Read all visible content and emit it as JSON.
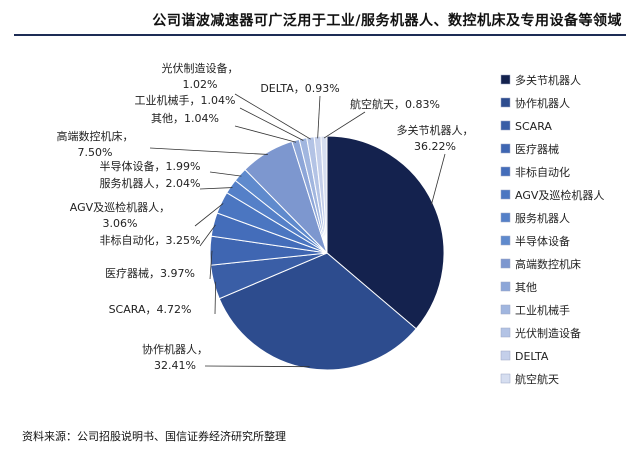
{
  "title": "公司谐波减速器可广泛用于工业/服务机器人、数控机床及专用设备等领域",
  "source": "资料来源：公司招股说明书、国信证券经济研究所整理",
  "chart_data": {
    "type": "pie",
    "legend_position": "right",
    "slices": [
      {
        "label": "多关节机器人",
        "value": 36.22,
        "display": "36.22%",
        "color": "#14224e"
      },
      {
        "label": "协作机器人",
        "value": 32.41,
        "display": "32.41%",
        "color": "#2d4c8e"
      },
      {
        "label": "SCARA",
        "value": 4.72,
        "display": "4.72%",
        "color": "#3a5ea6"
      },
      {
        "label": "医疗器械",
        "value": 3.97,
        "display": "3.97%",
        "color": "#3f66b2"
      },
      {
        "label": "非标自动化",
        "value": 3.25,
        "display": "3.25%",
        "color": "#446dba"
      },
      {
        "label": "AGV及巡检机器人",
        "value": 3.06,
        "display": "3.06%",
        "color": "#4b76c1"
      },
      {
        "label": "服务机器人",
        "value": 2.04,
        "display": "2.04%",
        "color": "#5580c8"
      },
      {
        "label": "半导体设备",
        "value": 1.99,
        "display": "1.99%",
        "color": "#5f8acd"
      },
      {
        "label": "高端数控机床",
        "value": 7.5,
        "display": "7.50%",
        "color": "#7d97cf"
      },
      {
        "label": "其他",
        "value": 1.04,
        "display": "1.04%",
        "color": "#8da6d8"
      },
      {
        "label": "工业机械手",
        "value": 1.04,
        "display": "1.04%",
        "color": "#a1b6df"
      },
      {
        "label": "光伏制造设备",
        "value": 1.02,
        "display": "1.02%",
        "color": "#b3c3e5"
      },
      {
        "label": "DELTA",
        "value": 0.93,
        "display": "0.93%",
        "color": "#c4cfea"
      },
      {
        "label": "航空航天",
        "value": 0.83,
        "display": "0.83%",
        "color": "#d6def0"
      }
    ]
  }
}
